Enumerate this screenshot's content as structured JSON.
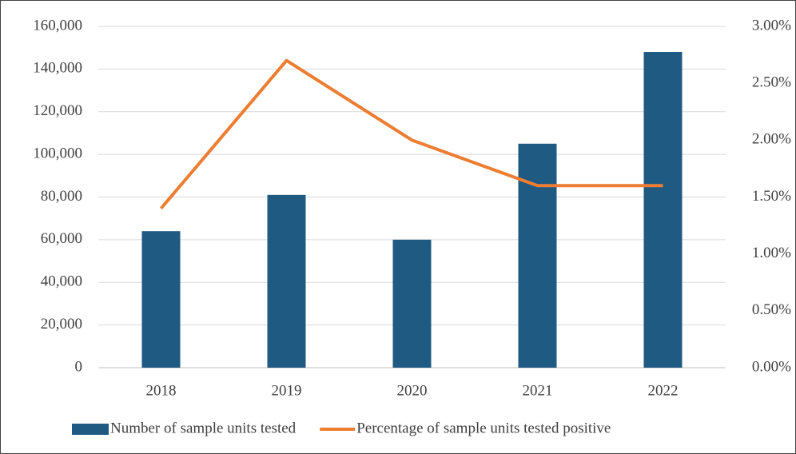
{
  "chart_data": {
    "type": "bar_line",
    "categories": [
      "2018",
      "2019",
      "2020",
      "2021",
      "2022"
    ],
    "series": [
      {
        "name": "Number of sample units tested",
        "type": "bar",
        "color": "#1f5a82",
        "values": [
          64000,
          81000,
          60000,
          105000,
          148000
        ]
      },
      {
        "name": "Percentage of sample units tested positive",
        "type": "line",
        "axis": "y2",
        "color": "#ed7d31",
        "values": [
          1.4,
          2.7,
          2.0,
          1.6,
          1.6
        ]
      }
    ],
    "ylim": [
      0,
      160000
    ],
    "yticks": [
      0,
      {
        "value": 20000,
        "label": "20,000"
      },
      {
        "value": 40000,
        "label": "40,000"
      },
      {
        "value": 60000,
        "label": "60,000"
      },
      {
        "value": 80000,
        "label": "80,000"
      },
      {
        "value": 100000,
        "label": "100,000"
      },
      {
        "value": 120000,
        "label": "120,000"
      },
      {
        "value": 140000,
        "label": "140,000"
      },
      {
        "value": 160000,
        "label": "160,000"
      }
    ],
    "y2lim": [
      0,
      3
    ],
    "y2ticks": [
      {
        "value": 0,
        "label": "0.00%"
      },
      {
        "value": 0.5,
        "label": "0.50%"
      },
      {
        "value": 1,
        "label": "1.00%"
      },
      {
        "value": 1.5,
        "label": "1.50%"
      },
      {
        "value": 2,
        "label": "2.00%"
      },
      {
        "value": 2.5,
        "label": "2.50%"
      },
      {
        "value": 3,
        "label": "3.00%"
      }
    ],
    "grid": true,
    "legend": "bottom"
  }
}
